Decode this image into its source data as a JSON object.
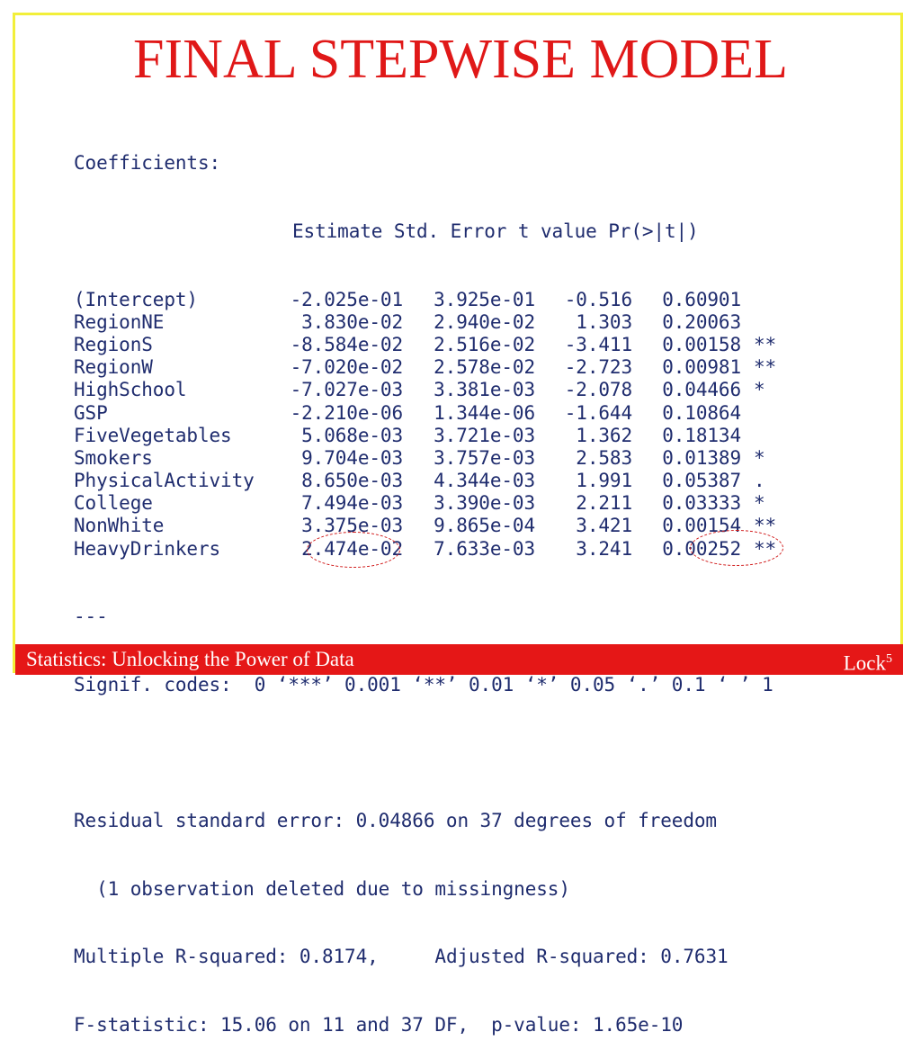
{
  "slide": {
    "title": "FINAL STEPWISE MODEL",
    "footer_left": "Statistics: Unlocking the Power of Data",
    "footer_right": "Lock",
    "footer_right_sup": "5"
  },
  "output": {
    "coef_title": "Coefficients:",
    "headers": [
      "Estimate",
      "Std. Error",
      "t value",
      "Pr(>|t|)"
    ],
    "rows": [
      {
        "name": "(Intercept)",
        "estimate": "-2.025e-01",
        "se": "3.925e-01",
        "t": "-0.516",
        "p": "0.60901",
        "sig": ""
      },
      {
        "name": "RegionNE",
        "estimate": "3.830e-02",
        "se": "2.940e-02",
        "t": "1.303",
        "p": "0.20063",
        "sig": ""
      },
      {
        "name": "RegionS",
        "estimate": "-8.584e-02",
        "se": "2.516e-02",
        "t": "-3.411",
        "p": "0.00158",
        "sig": "**"
      },
      {
        "name": "RegionW",
        "estimate": "-7.020e-02",
        "se": "2.578e-02",
        "t": "-2.723",
        "p": "0.00981",
        "sig": "**"
      },
      {
        "name": "HighSchool",
        "estimate": "-7.027e-03",
        "se": "3.381e-03",
        "t": "-2.078",
        "p": "0.04466",
        "sig": "*"
      },
      {
        "name": "GSP",
        "estimate": "-2.210e-06",
        "se": "1.344e-06",
        "t": "-1.644",
        "p": "0.10864",
        "sig": ""
      },
      {
        "name": "FiveVegetables",
        "estimate": "5.068e-03",
        "se": "3.721e-03",
        "t": "1.362",
        "p": "0.18134",
        "sig": ""
      },
      {
        "name": "Smokers",
        "estimate": "9.704e-03",
        "se": "3.757e-03",
        "t": "2.583",
        "p": "0.01389",
        "sig": "*"
      },
      {
        "name": "PhysicalActivity",
        "estimate": "8.650e-03",
        "se": "4.344e-03",
        "t": "1.991",
        "p": "0.05387",
        "sig": "."
      },
      {
        "name": "College",
        "estimate": "7.494e-03",
        "se": "3.390e-03",
        "t": "2.211",
        "p": "0.03333",
        "sig": "*"
      },
      {
        "name": "NonWhite",
        "estimate": "3.375e-03",
        "se": "9.865e-04",
        "t": "3.421",
        "p": "0.00154",
        "sig": "**"
      },
      {
        "name": "HeavyDrinkers",
        "estimate": "2.474e-02",
        "se": "7.633e-03",
        "t": "3.241",
        "p": "0.00252",
        "sig": "**"
      }
    ],
    "separator": "---",
    "signif_codes": "Signif. codes:  0 ‘***’ 0.001 ‘**’ 0.01 ‘*’ 0.05 ‘.’ 0.1 ‘ ’ 1",
    "residual_line": "Residual standard error: 0.04866 on 37 degrees of freedom",
    "missing_line": "  (1 observation deleted due to missingness)",
    "multiple_r2_label": "Multiple R-squared: ",
    "multiple_r2_value": "0.8174",
    "r2_sep": ",     ",
    "adjusted_r2_label": "Adjusted R-squared: ",
    "adjusted_r2_value": "0.7631",
    "fstat_line": "F-statistic: 15.06 on 11 and 37 DF,  p-value: 1.65e-10"
  },
  "colors": {
    "title": "#e01818",
    "console_text": "#1f2c6e",
    "footer_bg": "#e51717",
    "border": "#f2ef3a",
    "highlight_oval": "#d01818"
  }
}
